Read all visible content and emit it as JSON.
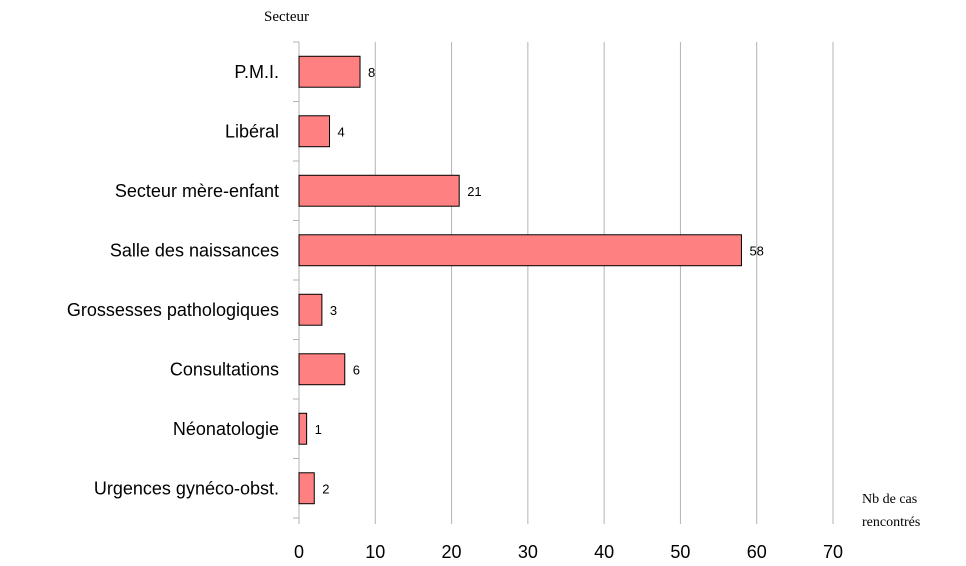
{
  "chart_data": {
    "type": "bar",
    "orientation": "horizontal",
    "ylabel": "Secteur",
    "xlabel": [
      "Nb de cas",
      "rencontrés"
    ],
    "categories": [
      "P.M.I.",
      "Libéral",
      "Secteur mère-enfant",
      "Salle des naissances",
      "Grossesses pathologiques",
      "Consultations",
      "Néonatologie",
      "Urgences gynéco-obst."
    ],
    "values": [
      8,
      4,
      21,
      58,
      3,
      6,
      1,
      2
    ],
    "data_labels": [
      "8",
      "4",
      "21",
      "58",
      "3",
      "6",
      "1",
      "2"
    ],
    "xlim": [
      0,
      70
    ],
    "xticks": [
      0,
      10,
      20,
      30,
      40,
      50,
      60,
      70
    ],
    "xtick_labels": [
      "0",
      "10",
      "20",
      "30",
      "40",
      "50",
      "60",
      "70"
    ],
    "grid": "vertical",
    "legend": "none",
    "bar_color": "#ff8080",
    "bar_edge_color": "#000000",
    "grid_color": "#b3b3b3"
  }
}
